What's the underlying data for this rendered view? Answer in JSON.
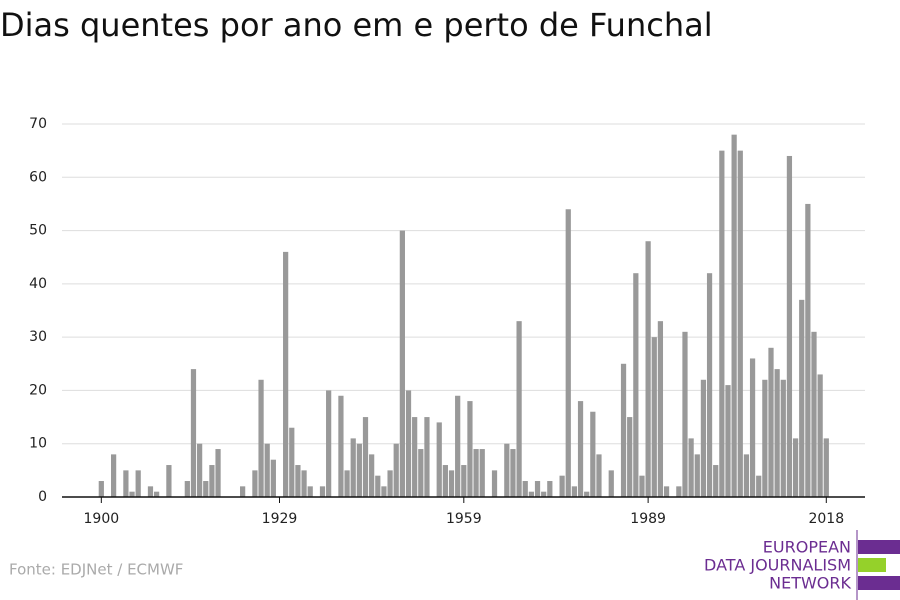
{
  "chart_data": {
    "type": "bar",
    "title": "Dias quentes por ano em e perto de Funchal",
    "source": "Fonte: EDJNet / ECMWF",
    "color": "#999999",
    "x": [
      1900,
      1901,
      1902,
      1903,
      1904,
      1905,
      1906,
      1907,
      1908,
      1909,
      1910,
      1911,
      1912,
      1913,
      1914,
      1915,
      1916,
      1917,
      1918,
      1919,
      1920,
      1921,
      1922,
      1923,
      1924,
      1925,
      1926,
      1927,
      1928,
      1929,
      1930,
      1931,
      1932,
      1933,
      1934,
      1935,
      1936,
      1937,
      1938,
      1939,
      1940,
      1941,
      1942,
      1943,
      1944,
      1945,
      1946,
      1947,
      1948,
      1949,
      1950,
      1951,
      1952,
      1953,
      1954,
      1955,
      1956,
      1957,
      1958,
      1959,
      1960,
      1961,
      1962,
      1963,
      1964,
      1965,
      1966,
      1967,
      1968,
      1969,
      1970,
      1971,
      1972,
      1973,
      1974,
      1975,
      1976,
      1977,
      1978,
      1979,
      1980,
      1981,
      1982,
      1983,
      1984,
      1985,
      1986,
      1987,
      1988,
      1989,
      1990,
      1991,
      1992,
      1993,
      1994,
      1995,
      1996,
      1997,
      1998,
      1999,
      2000,
      2001,
      2002,
      2003,
      2004,
      2005,
      2006,
      2007,
      2008,
      2009,
      2010,
      2011,
      2012,
      2013,
      2014,
      2015,
      2016,
      2017,
      2018
    ],
    "values": [
      3,
      0,
      8,
      0,
      5,
      1,
      5,
      0,
      2,
      1,
      0,
      6,
      0,
      0,
      3,
      24,
      10,
      3,
      6,
      9,
      0,
      0,
      0,
      2,
      0,
      5,
      22,
      10,
      7,
      0,
      46,
      13,
      6,
      5,
      2,
      0,
      2,
      20,
      0,
      19,
      5,
      11,
      10,
      15,
      8,
      4,
      2,
      5,
      10,
      50,
      20,
      15,
      9,
      15,
      0,
      14,
      6,
      5,
      19,
      6,
      18,
      9,
      9,
      0,
      5,
      0,
      10,
      9,
      33,
      3,
      1,
      3,
      1,
      3,
      0,
      4,
      54,
      2,
      18,
      1,
      16,
      8,
      0,
      5,
      0,
      25,
      15,
      42,
      4,
      48,
      30,
      33,
      2,
      0,
      2,
      31,
      11,
      8,
      22,
      42,
      6,
      65,
      21,
      68,
      65,
      8,
      26,
      4,
      22,
      28,
      24,
      22,
      64,
      11,
      37,
      55,
      31,
      23,
      11
    ],
    "xlim": [
      1893.6,
      2024.3
    ],
    "xticks": [
      1900,
      1929,
      1959,
      1989,
      2018
    ],
    "ylim": [
      0,
      70
    ],
    "yticks": [
      0,
      10,
      20,
      30,
      40,
      50,
      60,
      70
    ],
    "grid": true
  },
  "logo": {
    "lines": [
      "EUROPEAN",
      "DATA JOURNALISM",
      "NETWORK"
    ]
  }
}
